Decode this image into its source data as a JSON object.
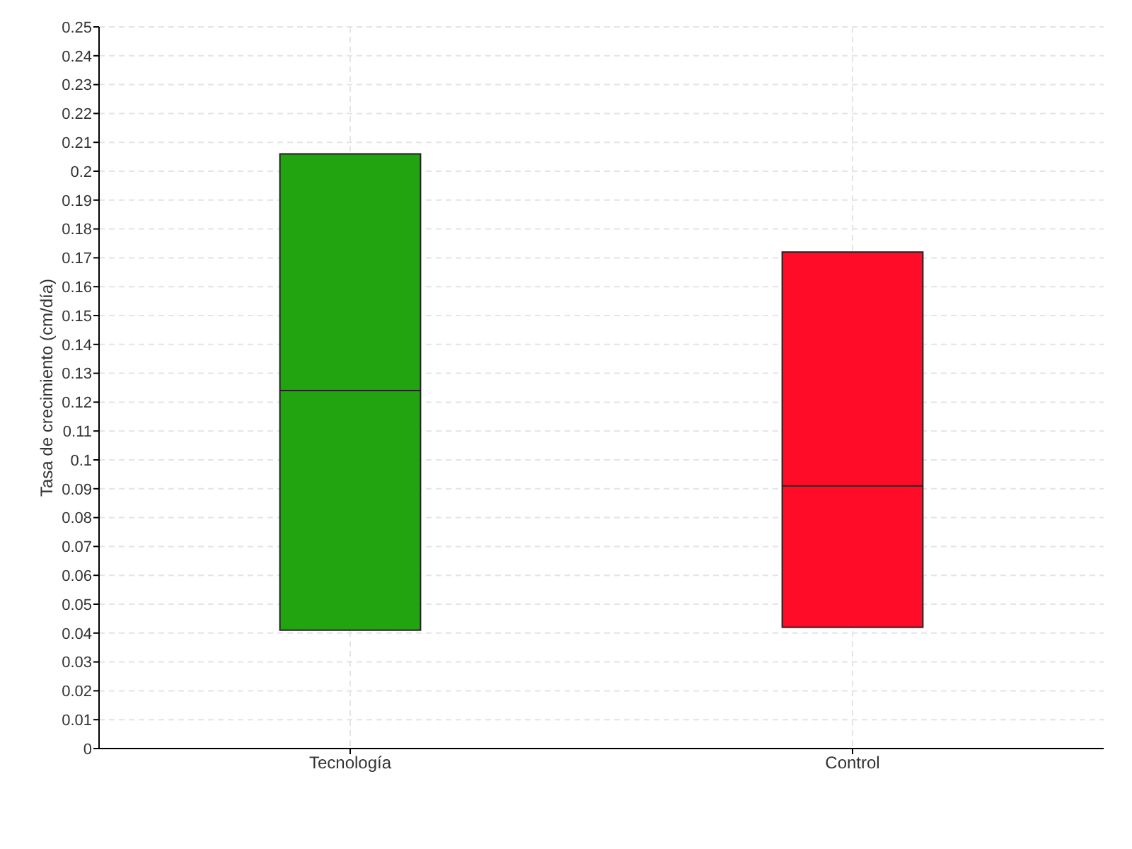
{
  "chart_data": {
    "type": "box",
    "ylabel": "Tasa de crecimiento (cm/día)",
    "categories": [
      "Tecnología",
      "Control"
    ],
    "colors": [
      "#22a411",
      "#ff0d28"
    ],
    "boxes": [
      {
        "low": 0.041,
        "q1": 0.041,
        "median": 0.124,
        "q3": 0.206,
        "high": 0.206
      },
      {
        "low": 0.042,
        "q1": 0.042,
        "median": 0.091,
        "q3": 0.172,
        "high": 0.172
      }
    ],
    "ylim": [
      0,
      0.25
    ],
    "yticks": [
      0,
      0.01,
      0.02,
      0.03,
      0.04,
      0.05,
      0.06,
      0.07,
      0.08,
      0.09,
      0.1,
      0.11,
      0.12,
      0.13,
      0.14,
      0.15,
      0.16,
      0.17,
      0.18,
      0.19,
      0.2,
      0.21,
      0.22,
      0.23,
      0.24,
      0.25
    ],
    "grid": true
  }
}
